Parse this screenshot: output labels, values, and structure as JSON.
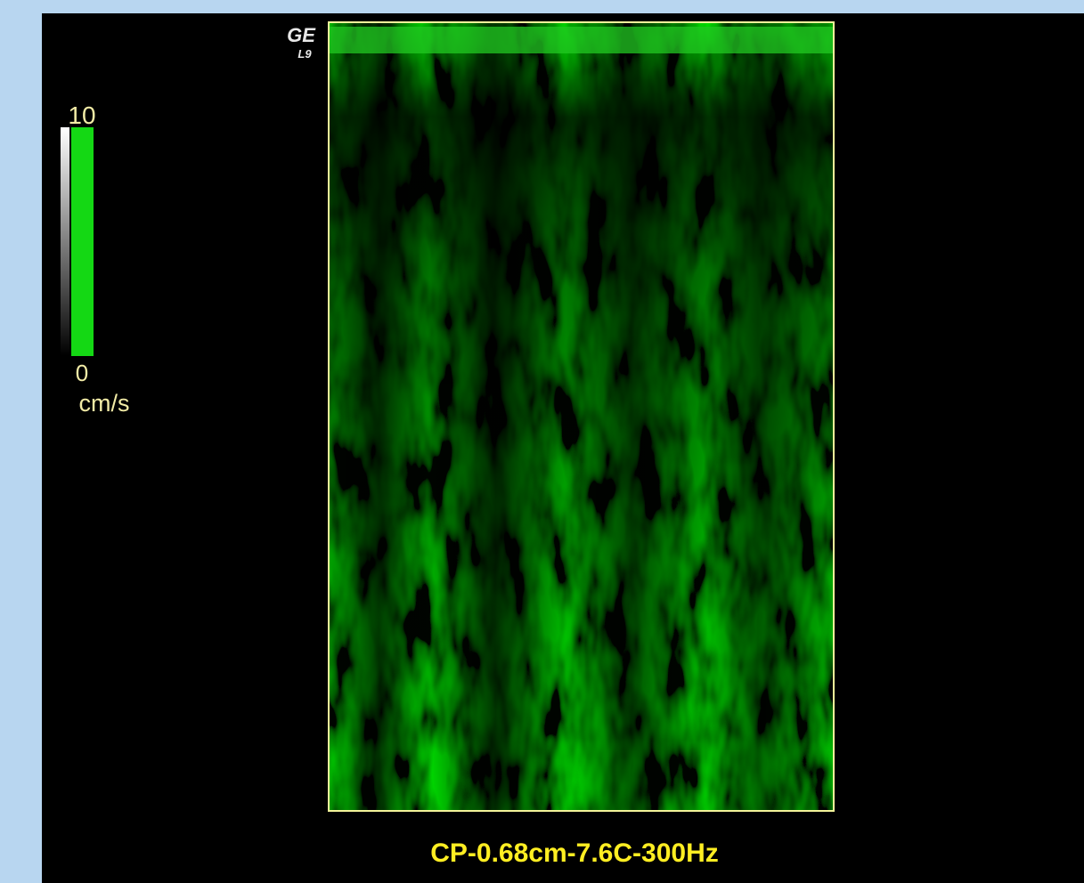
{
  "logo": {
    "brand": "GE",
    "probe": "L9"
  },
  "scale": {
    "max_label": "10",
    "min_label": "0",
    "unit": "cm/s"
  },
  "caption": "CP-0.68cm-7.6C-300Hz"
}
